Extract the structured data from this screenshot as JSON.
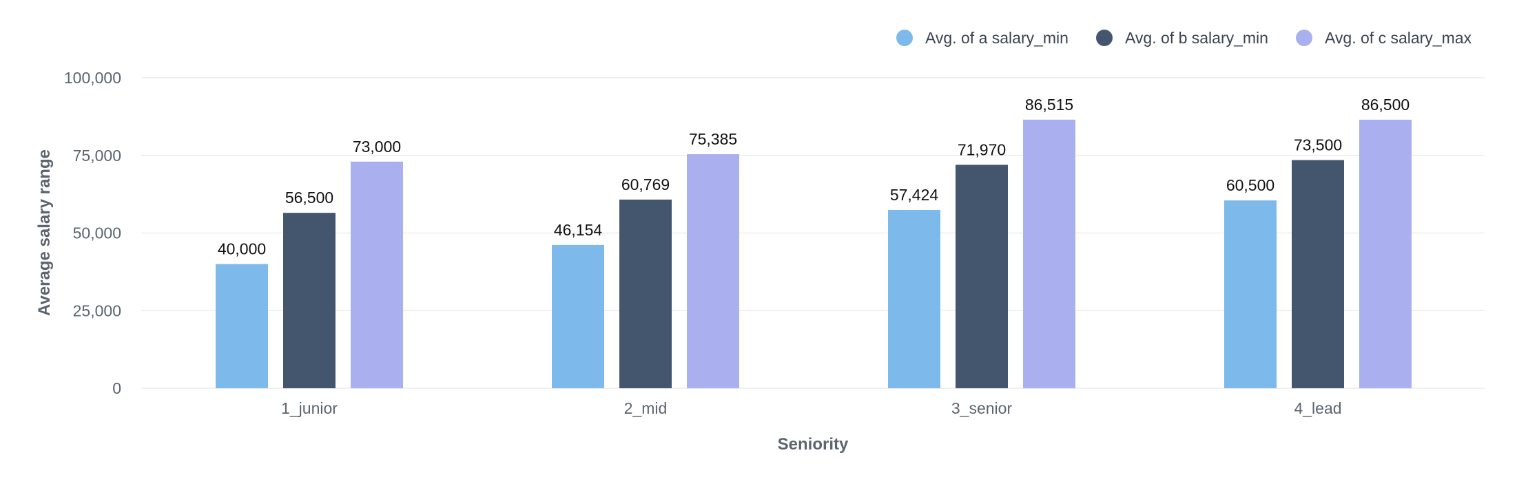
{
  "chart_data": {
    "type": "bar",
    "title": "",
    "xlabel": "Seniority",
    "ylabel": "Average salary range",
    "categories": [
      "1_junior",
      "2_mid",
      "3_senior",
      "4_lead"
    ],
    "series": [
      {
        "name": "Avg. of a salary_min",
        "color": "#7db9ea",
        "values": [
          40000,
          46154,
          57424,
          60500
        ],
        "labels": [
          "40,000",
          "46,154",
          "57,424",
          "60,500"
        ]
      },
      {
        "name": "Avg. of b salary_min",
        "color": "#44566e",
        "values": [
          56500,
          60769,
          71970,
          73500
        ],
        "labels": [
          "56,500",
          "60,769",
          "71,970",
          "73,500"
        ]
      },
      {
        "name": "Avg. of c salary_max",
        "color": "#aaaff0",
        "values": [
          73000,
          75385,
          86515,
          86500
        ],
        "labels": [
          "73,000",
          "75,385",
          "86,515",
          "86,500"
        ]
      }
    ],
    "ylim": [
      0,
      100000
    ],
    "yticks": [
      0,
      25000,
      50000,
      75000,
      100000
    ],
    "ytick_labels": [
      "0",
      "25,000",
      "50,000",
      "75,000",
      "100,000"
    ],
    "grid": true,
    "legend_position": "top-right"
  }
}
